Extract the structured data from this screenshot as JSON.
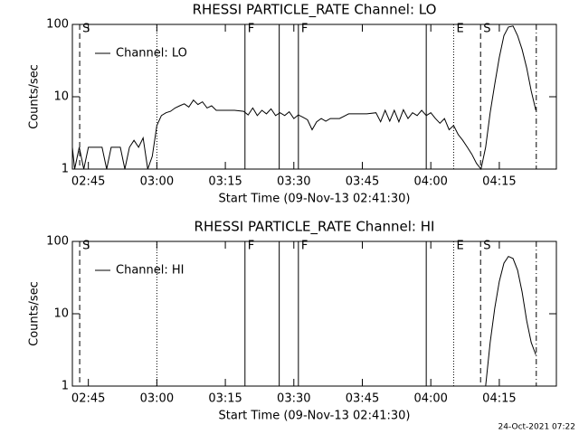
{
  "chart_data": [
    {
      "type": "line",
      "title": "RHESSI PARTICLE_RATE Channel: LO",
      "xlabel": "Start Time (09-Nov-13 02:41:30)",
      "ylabel": "Counts/sec",
      "xlim": [
        161.5,
        267.5
      ],
      "ylim": [
        1,
        100
      ],
      "yscale": "log",
      "legend": "upper left",
      "xticks": [
        {
          "value": 165,
          "label": "02:45"
        },
        {
          "value": 180,
          "label": "03:00"
        },
        {
          "value": 195,
          "label": "03:15"
        },
        {
          "value": 210,
          "label": "03:30"
        },
        {
          "value": 225,
          "label": "03:45"
        },
        {
          "value": 240,
          "label": "04:00"
        },
        {
          "value": 255,
          "label": "04:15"
        }
      ],
      "yticks": [
        1,
        10,
        100
      ],
      "series": [
        {
          "name": "Channel: LO",
          "color": "#000000",
          "x": [
            161.5,
            162,
            163,
            164,
            165,
            167,
            168,
            169,
            170,
            172,
            173,
            174,
            175,
            176,
            177,
            178,
            179,
            180,
            181,
            182,
            183,
            184,
            185,
            186,
            187,
            188,
            189,
            190,
            191,
            192,
            193,
            195,
            197,
            199,
            200,
            201,
            202,
            203,
            204,
            205,
            206,
            207,
            208,
            209,
            210,
            211,
            212,
            213,
            214,
            215,
            216,
            217,
            218,
            220,
            222,
            224,
            226,
            228,
            229,
            230,
            231,
            232,
            233,
            234,
            235,
            236,
            237,
            238,
            239,
            240,
            241,
            242,
            243,
            244,
            245,
            246,
            247,
            248,
            249,
            250,
            251,
            252,
            253,
            254,
            255,
            256,
            257,
            258,
            259,
            260,
            261,
            262,
            263
          ],
          "values": [
            2,
            1,
            2,
            1,
            2,
            2,
            2,
            1,
            2,
            2,
            1,
            2,
            2.5,
            2,
            2.7,
            1,
            1.5,
            4,
            5.5,
            6,
            6.3,
            7,
            7.5,
            8,
            7.2,
            9,
            7.8,
            8.5,
            7,
            7.5,
            6.5,
            6.5,
            6.5,
            6.3,
            5.6,
            7,
            5.5,
            6.5,
            5.8,
            6.8,
            5.5,
            6,
            5.5,
            6.2,
            5,
            5.6,
            5.2,
            4.8,
            3.5,
            4.5,
            5,
            4.6,
            5,
            5,
            5.8,
            5.8,
            5.8,
            6,
            4.5,
            6.5,
            4.6,
            6.5,
            4.5,
            6.6,
            5,
            6,
            5.5,
            6.5,
            5.5,
            6,
            5,
            4.3,
            5,
            3.5,
            4,
            3,
            2.5,
            2,
            1.6,
            1.2,
            1,
            2,
            6,
            15,
            35,
            70,
            92,
            95,
            70,
            45,
            25,
            12,
            6.5
          ]
        }
      ],
      "markers": [
        {
          "x": 163.1,
          "style": "dashed",
          "label": "S"
        },
        {
          "x": 180.0,
          "style": "dotted"
        },
        {
          "x": 199.3,
          "style": "solid",
          "label": "F"
        },
        {
          "x": 206.8,
          "style": "solid"
        },
        {
          "x": 211.0,
          "style": "solid",
          "label": "F"
        },
        {
          "x": 239.0,
          "style": "solid"
        },
        {
          "x": 245.0,
          "style": "dotted",
          "label": "E"
        },
        {
          "x": 250.9,
          "style": "dashed",
          "label": "S"
        },
        {
          "x": 263.1,
          "style": "dashdot"
        }
      ]
    },
    {
      "type": "line",
      "title": "RHESSI PARTICLE_RATE Channel: HI",
      "xlabel": "Start Time (09-Nov-13 02:41:30)",
      "ylabel": "Counts/sec",
      "xlim": [
        161.5,
        267.5
      ],
      "ylim": [
        1,
        100
      ],
      "yscale": "log",
      "legend": "upper left",
      "xticks": [
        {
          "value": 165,
          "label": "02:45"
        },
        {
          "value": 180,
          "label": "03:00"
        },
        {
          "value": 195,
          "label": "03:15"
        },
        {
          "value": 210,
          "label": "03:30"
        },
        {
          "value": 225,
          "label": "03:45"
        },
        {
          "value": 240,
          "label": "04:00"
        },
        {
          "value": 255,
          "label": "04:15"
        }
      ],
      "yticks": [
        1,
        10,
        100
      ],
      "series": [
        {
          "name": "Channel: HI",
          "color": "#000000",
          "x": [
            252,
            253,
            254,
            255,
            256,
            257,
            258,
            259,
            260,
            261,
            262,
            263
          ],
          "values": [
            1,
            4,
            12,
            28,
            50,
            62,
            58,
            40,
            20,
            8,
            4,
            2.7
          ]
        }
      ],
      "markers": [
        {
          "x": 163.1,
          "style": "dashed",
          "label": "S"
        },
        {
          "x": 180.0,
          "style": "dotted"
        },
        {
          "x": 199.3,
          "style": "solid",
          "label": "F"
        },
        {
          "x": 206.8,
          "style": "solid"
        },
        {
          "x": 211.0,
          "style": "solid",
          "label": "F"
        },
        {
          "x": 239.0,
          "style": "solid"
        },
        {
          "x": 245.0,
          "style": "dotted",
          "label": "E"
        },
        {
          "x": 250.9,
          "style": "dashed",
          "label": "S"
        },
        {
          "x": 263.1,
          "style": "dashdot"
        }
      ]
    }
  ],
  "footer": "24-Oct-2021 07:22"
}
